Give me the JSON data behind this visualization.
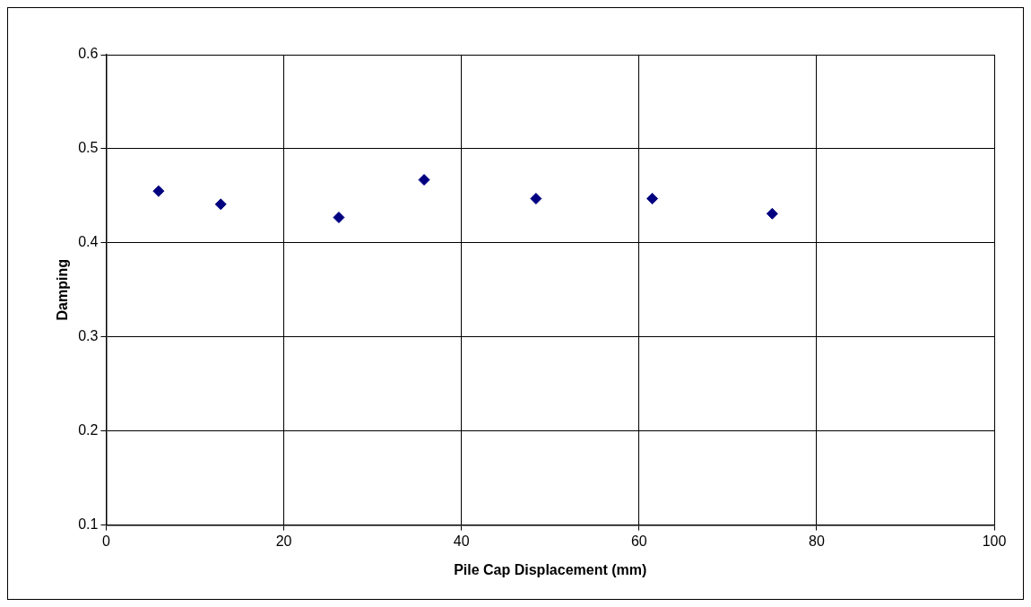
{
  "chart_data": {
    "type": "scatter",
    "xlabel": "Pile Cap Displacement (mm)",
    "ylabel": "Damping",
    "x": [
      5.9,
      12.9,
      26.2,
      35.8,
      48.4,
      61.5,
      75.0
    ],
    "values": [
      0.455,
      0.441,
      0.427,
      0.467,
      0.447,
      0.447,
      0.431
    ],
    "color": "#000080",
    "marker": "diamond",
    "xlim": [
      0,
      100
    ],
    "xticks": [
      0,
      20,
      40,
      60,
      80,
      100
    ],
    "ylim": [
      0.1,
      0.6
    ],
    "yticks": [
      0.1,
      0.2,
      0.3,
      0.4,
      0.5,
      0.6
    ],
    "grid": true,
    "legend": false
  }
}
